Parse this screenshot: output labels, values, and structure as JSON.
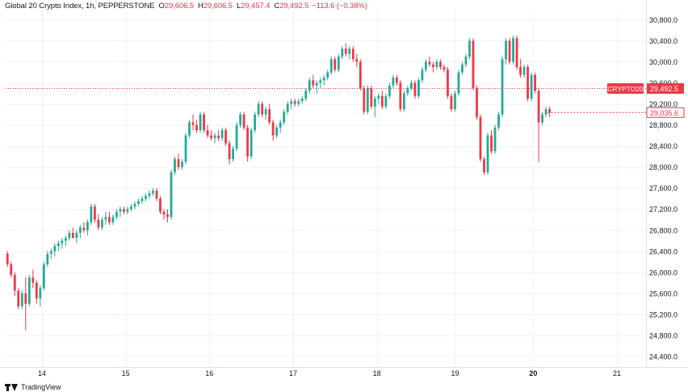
{
  "header": {
    "symbol": "Global 20 Crypto Index, 1h, PEPPERSTONE",
    "open_label": "O",
    "open": "29,606.5",
    "high_label": "H",
    "high": "29,606.5",
    "low_label": "L",
    "low": "29,457.4",
    "close_label": "C",
    "close": "29,492.5",
    "change": "−113.6 (−0.38%)"
  },
  "footer": {
    "brand": "TradingView"
  },
  "colors": {
    "up": "#22ab94",
    "down": "#f23645",
    "grid": "#f0f3fa",
    "text": "#131722"
  },
  "chart_data": {
    "type": "candlestick",
    "grid": true,
    "y_axis_side": "right",
    "ylim": [
      24200,
      30960
    ],
    "yticks": [
      24400,
      24800,
      25200,
      25600,
      26000,
      26400,
      26800,
      27200,
      27600,
      28000,
      28400,
      28800,
      29200,
      29600,
      30000,
      30400,
      30800
    ],
    "ytick_labels": [
      "24,400.0",
      "24,800.0",
      "25,200.0",
      "25,600.0",
      "26,000.0",
      "26,400.0",
      "26,800.0",
      "27,200.0",
      "27,600.0",
      "28,000.0",
      "28,400.0",
      "28,800.0",
      "29,200.0",
      "29,600.0",
      "30,000.0",
      "30,400.0",
      "30,800.0"
    ],
    "xlim": [
      0,
      176
    ],
    "xticks": [
      {
        "x": 10,
        "label": "14"
      },
      {
        "x": 33,
        "label": "15"
      },
      {
        "x": 56,
        "label": "16"
      },
      {
        "x": 79,
        "label": "17"
      },
      {
        "x": 102,
        "label": "18"
      },
      {
        "x": 123.5,
        "label": "19"
      },
      {
        "x": 145,
        "label": "20"
      },
      {
        "x": 168,
        "label": "21"
      }
    ],
    "last_price": 29492.5,
    "last_price_label": "29,492.5",
    "symbol_tag": "CRYPTO20",
    "secondary_price_label": "29,035.6",
    "secondary_price": 29035.6,
    "ohlc": [
      [
        26350,
        26400,
        26100,
        26150
      ],
      [
        26150,
        26200,
        25900,
        25950
      ],
      [
        25950,
        26000,
        25550,
        25650
      ],
      [
        25650,
        25700,
        25300,
        25350
      ],
      [
        25350,
        25650,
        25300,
        25600
      ],
      [
        25600,
        25900,
        24900,
        25400
      ],
      [
        25400,
        25950,
        25350,
        25900
      ],
      [
        25900,
        26050,
        25700,
        25800
      ],
      [
        25800,
        25850,
        25400,
        25500
      ],
      [
        25500,
        25750,
        25350,
        25700
      ],
      [
        25700,
        26200,
        25650,
        26150
      ],
      [
        26150,
        26400,
        26100,
        26350
      ],
      [
        26350,
        26450,
        26250,
        26400
      ],
      [
        26400,
        26550,
        26300,
        26500
      ],
      [
        26500,
        26600,
        26400,
        26550
      ],
      [
        26550,
        26650,
        26450,
        26600
      ],
      [
        26600,
        26700,
        26500,
        26650
      ],
      [
        26650,
        26800,
        26600,
        26750
      ],
      [
        26750,
        26850,
        26650,
        26650
      ],
      [
        26650,
        26800,
        26550,
        26750
      ],
      [
        26750,
        26900,
        26650,
        26850
      ],
      [
        26850,
        26950,
        26750,
        26800
      ],
      [
        26800,
        27000,
        26700,
        26950
      ],
      [
        26950,
        27300,
        26900,
        27250
      ],
      [
        27250,
        27300,
        26950,
        27000
      ],
      [
        27000,
        27100,
        26800,
        26850
      ],
      [
        26850,
        27050,
        26800,
        27000
      ],
      [
        27000,
        27150,
        26900,
        27050
      ],
      [
        27050,
        27150,
        26900,
        26950
      ],
      [
        26950,
        27100,
        26900,
        27050
      ],
      [
        27050,
        27200,
        27000,
        27150
      ],
      [
        27150,
        27250,
        27050,
        27200
      ],
      [
        27200,
        27250,
        27100,
        27150
      ],
      [
        27150,
        27250,
        27100,
        27200
      ],
      [
        27200,
        27300,
        27150,
        27250
      ],
      [
        27250,
        27350,
        27200,
        27300
      ],
      [
        27300,
        27400,
        27250,
        27350
      ],
      [
        27350,
        27450,
        27300,
        27400
      ],
      [
        27400,
        27500,
        27350,
        27450
      ],
      [
        27450,
        27550,
        27400,
        27500
      ],
      [
        27500,
        27600,
        27450,
        27550
      ],
      [
        27550,
        27600,
        27350,
        27400
      ],
      [
        27400,
        27450,
        27100,
        27150
      ],
      [
        27150,
        27200,
        27000,
        27100
      ],
      [
        27100,
        27200,
        26950,
        27050
      ],
      [
        27050,
        27950,
        27000,
        27900
      ],
      [
        27900,
        28200,
        27850,
        28150
      ],
      [
        28150,
        28250,
        27950,
        28000
      ],
      [
        28000,
        28150,
        27950,
        28100
      ],
      [
        28100,
        28650,
        28050,
        28600
      ],
      [
        28600,
        28900,
        28550,
        28850
      ],
      [
        28850,
        29000,
        28700,
        28800
      ],
      [
        28800,
        28900,
        28650,
        28700
      ],
      [
        28700,
        29050,
        28650,
        29000
      ],
      [
        29000,
        29050,
        28650,
        28700
      ],
      [
        28700,
        28800,
        28550,
        28600
      ],
      [
        28600,
        28700,
        28500,
        28550
      ],
      [
        28550,
        28650,
        28450,
        28600
      ],
      [
        28600,
        28700,
        28500,
        28550
      ],
      [
        28550,
        28750,
        28500,
        28700
      ],
      [
        28700,
        28750,
        28400,
        28450
      ],
      [
        28450,
        28500,
        28050,
        28150
      ],
      [
        28150,
        28400,
        28100,
        28350
      ],
      [
        28350,
        28850,
        28300,
        28800
      ],
      [
        28800,
        29050,
        28750,
        29000
      ],
      [
        29000,
        29050,
        28700,
        28750
      ],
      [
        28750,
        28800,
        28100,
        28200
      ],
      [
        28200,
        28750,
        28150,
        28700
      ],
      [
        28700,
        29050,
        28650,
        29000
      ],
      [
        29000,
        29250,
        28950,
        29200
      ],
      [
        29200,
        29250,
        28950,
        29000
      ],
      [
        29000,
        29150,
        28900,
        29100
      ],
      [
        29100,
        29200,
        28800,
        28850
      ],
      [
        28850,
        28900,
        28500,
        28600
      ],
      [
        28600,
        28800,
        28550,
        28750
      ],
      [
        28750,
        28900,
        28650,
        28850
      ],
      [
        28850,
        29100,
        28800,
        29050
      ],
      [
        29050,
        29250,
        29000,
        29200
      ],
      [
        29200,
        29300,
        29100,
        29250
      ],
      [
        29250,
        29300,
        29150,
        29200
      ],
      [
        29200,
        29300,
        29150,
        29250
      ],
      [
        29250,
        29350,
        29200,
        29300
      ],
      [
        29300,
        29500,
        29250,
        29450
      ],
      [
        29450,
        29700,
        29400,
        29650
      ],
      [
        29650,
        29750,
        29500,
        29550
      ],
      [
        29550,
        29650,
        29400,
        29600
      ],
      [
        29600,
        29700,
        29500,
        29650
      ],
      [
        29650,
        29750,
        29550,
        29700
      ],
      [
        29700,
        29850,
        29650,
        29800
      ],
      [
        29800,
        30100,
        29750,
        30050
      ],
      [
        30050,
        30100,
        29800,
        29850
      ],
      [
        29850,
        30150,
        29800,
        30100
      ],
      [
        30100,
        30300,
        30050,
        30250
      ],
      [
        30250,
        30350,
        30100,
        30150
      ],
      [
        30150,
        30300,
        30050,
        30250
      ],
      [
        30250,
        30300,
        30000,
        30050
      ],
      [
        30050,
        30150,
        29900,
        30000
      ],
      [
        30000,
        30050,
        29450,
        29500
      ],
      [
        29500,
        29550,
        29000,
        29050
      ],
      [
        29050,
        29550,
        29000,
        29500
      ],
      [
        29500,
        29550,
        29100,
        29150
      ],
      [
        29150,
        29350,
        28950,
        29300
      ],
      [
        29300,
        29400,
        29200,
        29350
      ],
      [
        29350,
        29450,
        29100,
        29150
      ],
      [
        29150,
        29400,
        29100,
        29350
      ],
      [
        29350,
        29600,
        29300,
        29550
      ],
      [
        29550,
        29750,
        29500,
        29700
      ],
      [
        29700,
        29750,
        29550,
        29600
      ],
      [
        29600,
        29650,
        29050,
        29100
      ],
      [
        29100,
        29450,
        29050,
        29400
      ],
      [
        29400,
        29550,
        29350,
        29500
      ],
      [
        29500,
        29650,
        29450,
        29600
      ],
      [
        29600,
        29650,
        29300,
        29350
      ],
      [
        29350,
        29700,
        29300,
        29650
      ],
      [
        29650,
        29900,
        29600,
        29850
      ],
      [
        29850,
        30050,
        29800,
        30000
      ],
      [
        30000,
        30100,
        29900,
        29950
      ],
      [
        29950,
        30000,
        29800,
        29900
      ],
      [
        29900,
        30050,
        29850,
        30000
      ],
      [
        30000,
        30050,
        29850,
        29900
      ],
      [
        29900,
        29950,
        29800,
        29850
      ],
      [
        29850,
        29900,
        29300,
        29350
      ],
      [
        29350,
        29400,
        29050,
        29100
      ],
      [
        29100,
        29450,
        29050,
        29400
      ],
      [
        29400,
        29850,
        29350,
        29800
      ],
      [
        29800,
        30000,
        29750,
        29950
      ],
      [
        29950,
        30150,
        29900,
        30100
      ],
      [
        30100,
        30450,
        30050,
        30400
      ],
      [
        30400,
        30450,
        29450,
        29500
      ],
      [
        29500,
        29550,
        28900,
        28950
      ],
      [
        28950,
        29000,
        28100,
        28150
      ],
      [
        28150,
        28200,
        27850,
        27900
      ],
      [
        27900,
        28650,
        27850,
        28600
      ],
      [
        28600,
        28700,
        28250,
        28300
      ],
      [
        28300,
        28800,
        28250,
        28750
      ],
      [
        28750,
        29050,
        28700,
        29000
      ],
      [
        29000,
        30100,
        28950,
        30050
      ],
      [
        30050,
        30450,
        29950,
        30400
      ],
      [
        30400,
        30450,
        29950,
        30000
      ],
      [
        30000,
        30500,
        29950,
        30450
      ],
      [
        30450,
        30500,
        29850,
        29900
      ],
      [
        29900,
        30050,
        29700,
        29750
      ],
      [
        29750,
        29950,
        29700,
        29900
      ],
      [
        29900,
        29950,
        29250,
        29300
      ],
      [
        29300,
        29800,
        29250,
        29750
      ],
      [
        29750,
        29800,
        29400,
        29450
      ],
      [
        29450,
        29500,
        28100,
        28850
      ],
      [
        28850,
        29050,
        28800,
        29000
      ],
      [
        29000,
        29150,
        28950,
        29100
      ],
      [
        29100,
        29150,
        28950,
        29036
      ]
    ]
  }
}
